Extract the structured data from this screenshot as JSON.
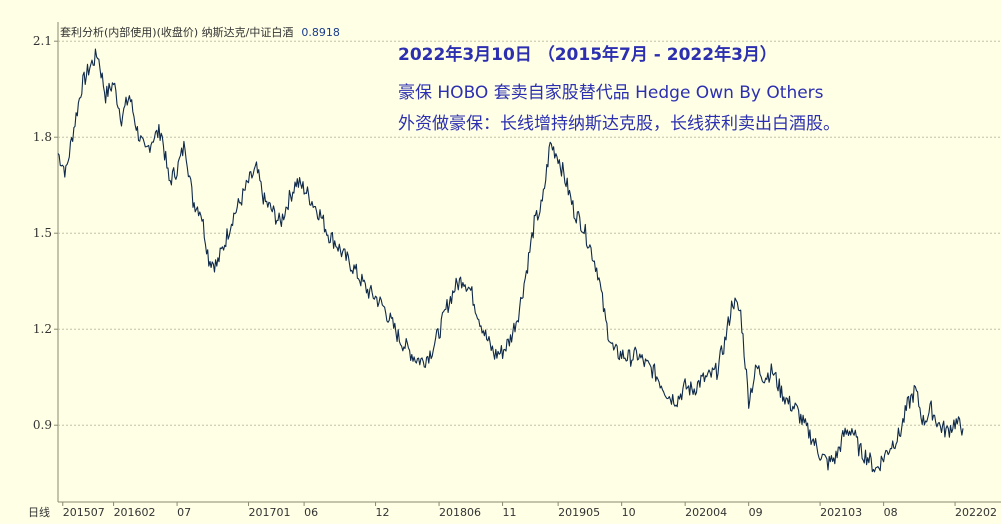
{
  "header": {
    "indicator_label": "套利分析(内部使用)(收盘价) 纳斯达克/中证白酒",
    "current_value": "0.8918"
  },
  "annotation": {
    "title": "2022年3月10日  （2015年7月 - 2022年3月）",
    "line1": "豪保 HOBO 套卖自家股替代品 Hedge Own By Others",
    "line2": "外资做豪保：长线增持纳斯达克股，长线获利卖出白酒股。"
  },
  "colors": {
    "background": "#ffffe6",
    "line": "#0f2a4a",
    "grid": "#b8b8a0",
    "annotation_text": "#2b2fb0"
  },
  "chart_data": {
    "type": "line",
    "period_label": "日线",
    "ylim": [
      0.66,
      2.16
    ],
    "y_ticks": [
      "2.1",
      "1.8",
      "1.5",
      "1.2",
      "0.9"
    ],
    "y_tick_values": [
      2.1,
      1.8,
      1.5,
      1.2,
      0.9
    ],
    "x_tick_labels": [
      "201507",
      "201602",
      "07",
      "201701",
      "06",
      "12",
      "201806",
      "11",
      "201905",
      "10",
      "202004",
      "09",
      "202103",
      "08",
      "202202"
    ],
    "x_tick_indices": [
      0.6,
      7,
      15,
      24,
      31,
      40,
      48,
      56,
      63,
      71,
      79,
      87,
      96,
      104,
      113
    ],
    "series": [
      {
        "x_range": [
          0,
          114
        ],
        "values": [
          1.75,
          1.69,
          1.83,
          1.96,
          2.02,
          2.06,
          1.93,
          1.97,
          1.86,
          1.93,
          1.82,
          1.75,
          1.8,
          1.82,
          1.66,
          1.7,
          1.78,
          1.6,
          1.57,
          1.42,
          1.4,
          1.47,
          1.55,
          1.6,
          1.66,
          1.7,
          1.6,
          1.57,
          1.53,
          1.6,
          1.66,
          1.64,
          1.6,
          1.56,
          1.5,
          1.47,
          1.43,
          1.4,
          1.36,
          1.32,
          1.3,
          1.27,
          1.22,
          1.17,
          1.14,
          1.11,
          1.1,
          1.13,
          1.19,
          1.27,
          1.33,
          1.36,
          1.32,
          1.24,
          1.17,
          1.12,
          1.13,
          1.17,
          1.25,
          1.38,
          1.53,
          1.59,
          1.78,
          1.74,
          1.66,
          1.57,
          1.53,
          1.46,
          1.38,
          1.22,
          1.13,
          1.12,
          1.11,
          1.12,
          1.09,
          1.07,
          1.03,
          0.99,
          0.98,
          1.02,
          1.01,
          1.04,
          1.05,
          1.07,
          1.16,
          1.29,
          1.25,
          0.98,
          1.08,
          1.05,
          1.07,
          1.01,
          0.97,
          0.95,
          0.9,
          0.86,
          0.81,
          0.78,
          0.8,
          0.87,
          0.89,
          0.82,
          0.8,
          0.76,
          0.8,
          0.84,
          0.87,
          0.96,
          1.01,
          0.91,
          0.95,
          0.9,
          0.88,
          0.91,
          0.89
        ]
      }
    ]
  }
}
